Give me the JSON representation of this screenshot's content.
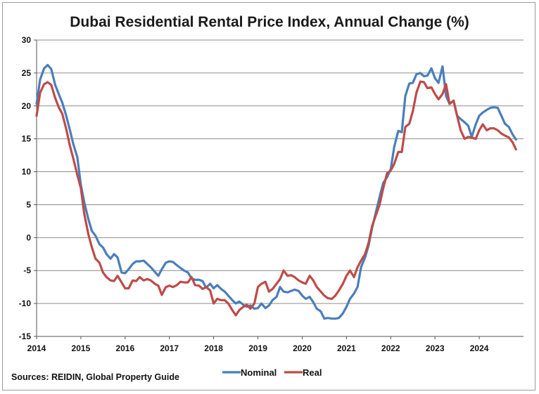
{
  "chart_data": {
    "type": "line",
    "title": "Dubai Residential Rental Price Index, Annual Change (%)",
    "xlabel": "",
    "ylabel": "",
    "x_ticks": [
      "2014",
      "2015",
      "2016",
      "2017",
      "2018",
      "2019",
      "2020",
      "2021",
      "2022",
      "2023",
      "2024"
    ],
    "xlim": [
      2014.0,
      2025.0
    ],
    "ylim": [
      -15,
      30
    ],
    "y_ticks": [
      -15,
      -10,
      -5,
      0,
      5,
      10,
      15,
      20,
      25,
      30
    ],
    "grid": "horizontal",
    "legend": "bottom-center",
    "series": [
      {
        "name": "Nominal",
        "color": "#4a7ebb",
        "points": [
          [
            2014.0,
            20.3
          ],
          [
            2014.08,
            24.0
          ],
          [
            2014.17,
            25.7
          ],
          [
            2014.25,
            26.2
          ],
          [
            2014.33,
            25.6
          ],
          [
            2014.42,
            23.2
          ],
          [
            2014.5,
            21.8
          ],
          [
            2014.58,
            20.5
          ],
          [
            2014.67,
            18.5
          ],
          [
            2014.75,
            16.4
          ],
          [
            2014.83,
            14.2
          ],
          [
            2014.92,
            12.2
          ],
          [
            2015.0,
            8.0
          ],
          [
            2015.08,
            5.3
          ],
          [
            2015.17,
            2.8
          ],
          [
            2015.25,
            1.0
          ],
          [
            2015.33,
            0.3
          ],
          [
            2015.42,
            -1.0
          ],
          [
            2015.5,
            -1.5
          ],
          [
            2015.58,
            -2.5
          ],
          [
            2015.67,
            -3.2
          ],
          [
            2015.75,
            -2.5
          ],
          [
            2015.83,
            -3.0
          ],
          [
            2015.92,
            -5.3
          ],
          [
            2016.0,
            -5.4
          ],
          [
            2016.08,
            -4.8
          ],
          [
            2016.17,
            -4.0
          ],
          [
            2016.25,
            -3.6
          ],
          [
            2016.33,
            -3.6
          ],
          [
            2016.42,
            -3.5
          ],
          [
            2016.5,
            -4.0
          ],
          [
            2016.58,
            -4.5
          ],
          [
            2016.67,
            -5.2
          ],
          [
            2016.75,
            -5.8
          ],
          [
            2016.83,
            -4.8
          ],
          [
            2016.92,
            -3.8
          ],
          [
            2017.0,
            -3.6
          ],
          [
            2017.08,
            -3.7
          ],
          [
            2017.17,
            -4.2
          ],
          [
            2017.25,
            -4.6
          ],
          [
            2017.33,
            -5.0
          ],
          [
            2017.42,
            -5.3
          ],
          [
            2017.5,
            -6.2
          ],
          [
            2017.58,
            -6.4
          ],
          [
            2017.67,
            -6.4
          ],
          [
            2017.75,
            -6.6
          ],
          [
            2017.83,
            -7.6
          ],
          [
            2017.92,
            -7.0
          ],
          [
            2018.0,
            -7.7
          ],
          [
            2018.08,
            -7.2
          ],
          [
            2018.17,
            -7.8
          ],
          [
            2018.25,
            -8.2
          ],
          [
            2018.33,
            -8.8
          ],
          [
            2018.42,
            -9.5
          ],
          [
            2018.5,
            -10.0
          ],
          [
            2018.58,
            -9.7
          ],
          [
            2018.67,
            -10.2
          ],
          [
            2018.75,
            -10.5
          ],
          [
            2018.83,
            -10.3
          ],
          [
            2018.92,
            -10.8
          ],
          [
            2019.0,
            -10.7
          ],
          [
            2019.08,
            -10.0
          ],
          [
            2019.17,
            -10.7
          ],
          [
            2019.25,
            -10.3
          ],
          [
            2019.33,
            -9.5
          ],
          [
            2019.42,
            -9.0
          ],
          [
            2019.5,
            -7.5
          ],
          [
            2019.58,
            -8.2
          ],
          [
            2019.67,
            -8.3
          ],
          [
            2019.75,
            -8.1
          ],
          [
            2019.83,
            -7.9
          ],
          [
            2019.92,
            -8.1
          ],
          [
            2020.0,
            -8.8
          ],
          [
            2020.08,
            -9.3
          ],
          [
            2020.17,
            -9.0
          ],
          [
            2020.25,
            -9.8
          ],
          [
            2020.33,
            -10.8
          ],
          [
            2020.42,
            -11.2
          ],
          [
            2020.5,
            -12.3
          ],
          [
            2020.58,
            -12.2
          ],
          [
            2020.67,
            -12.3
          ],
          [
            2020.75,
            -12.3
          ],
          [
            2020.83,
            -12.2
          ],
          [
            2020.92,
            -11.5
          ],
          [
            2021.0,
            -10.5
          ],
          [
            2021.08,
            -9.3
          ],
          [
            2021.17,
            -8.5
          ],
          [
            2021.25,
            -7.5
          ],
          [
            2021.33,
            -4.5
          ],
          [
            2021.42,
            -3.0
          ],
          [
            2021.5,
            -1.2
          ],
          [
            2021.58,
            1.5
          ],
          [
            2021.67,
            4.0
          ],
          [
            2021.75,
            6.2
          ],
          [
            2021.83,
            8.3
          ],
          [
            2021.92,
            9.2
          ],
          [
            2022.0,
            10.4
          ],
          [
            2022.08,
            13.8
          ],
          [
            2022.17,
            16.2
          ],
          [
            2022.25,
            16.0
          ],
          [
            2022.33,
            21.5
          ],
          [
            2022.42,
            23.4
          ],
          [
            2022.5,
            23.5
          ],
          [
            2022.58,
            24.8
          ],
          [
            2022.67,
            25.0
          ],
          [
            2022.75,
            24.5
          ],
          [
            2022.83,
            24.6
          ],
          [
            2022.92,
            25.7
          ],
          [
            2023.0,
            24.2
          ],
          [
            2023.08,
            23.5
          ],
          [
            2023.17,
            26.0
          ],
          [
            2023.25,
            21.5
          ],
          [
            2023.33,
            20.3
          ],
          [
            2023.42,
            20.8
          ],
          [
            2023.5,
            18.5
          ],
          [
            2023.58,
            18.0
          ],
          [
            2023.67,
            17.5
          ],
          [
            2023.75,
            17.0
          ],
          [
            2023.83,
            15.3
          ],
          [
            2023.92,
            17.2
          ],
          [
            2024.0,
            18.5
          ],
          [
            2024.08,
            19.0
          ],
          [
            2024.17,
            19.4
          ],
          [
            2024.25,
            19.7
          ],
          [
            2024.33,
            19.8
          ],
          [
            2024.42,
            19.7
          ],
          [
            2024.5,
            18.5
          ],
          [
            2024.58,
            17.3
          ],
          [
            2024.67,
            16.8
          ],
          [
            2024.75,
            15.7
          ],
          [
            2024.83,
            14.9
          ]
        ]
      },
      {
        "name": "Real",
        "color": "#be4b48",
        "points": [
          [
            2014.0,
            18.5
          ],
          [
            2014.08,
            22.0
          ],
          [
            2014.17,
            23.3
          ],
          [
            2014.25,
            23.6
          ],
          [
            2014.33,
            23.2
          ],
          [
            2014.42,
            21.2
          ],
          [
            2014.5,
            19.8
          ],
          [
            2014.58,
            18.8
          ],
          [
            2014.67,
            16.5
          ],
          [
            2014.75,
            14.0
          ],
          [
            2014.83,
            12.0
          ],
          [
            2014.92,
            9.5
          ],
          [
            2015.0,
            7.5
          ],
          [
            2015.08,
            3.5
          ],
          [
            2015.17,
            0.5
          ],
          [
            2015.25,
            -1.5
          ],
          [
            2015.33,
            -3.2
          ],
          [
            2015.42,
            -3.8
          ],
          [
            2015.5,
            -5.3
          ],
          [
            2015.58,
            -6.0
          ],
          [
            2015.67,
            -6.5
          ],
          [
            2015.75,
            -6.6
          ],
          [
            2015.83,
            -5.8
          ],
          [
            2015.92,
            -6.8
          ],
          [
            2016.0,
            -7.7
          ],
          [
            2016.08,
            -7.7
          ],
          [
            2016.17,
            -6.5
          ],
          [
            2016.25,
            -6.6
          ],
          [
            2016.33,
            -6.0
          ],
          [
            2016.42,
            -6.5
          ],
          [
            2016.5,
            -6.3
          ],
          [
            2016.58,
            -6.5
          ],
          [
            2016.67,
            -7.0
          ],
          [
            2016.75,
            -7.3
          ],
          [
            2016.83,
            -8.7
          ],
          [
            2016.92,
            -7.5
          ],
          [
            2017.0,
            -7.3
          ],
          [
            2017.08,
            -7.5
          ],
          [
            2017.17,
            -7.2
          ],
          [
            2017.25,
            -6.7
          ],
          [
            2017.33,
            -6.8
          ],
          [
            2017.42,
            -6.8
          ],
          [
            2017.5,
            -6.0
          ],
          [
            2017.58,
            -7.2
          ],
          [
            2017.67,
            -7.3
          ],
          [
            2017.75,
            -7.8
          ],
          [
            2017.83,
            -7.5
          ],
          [
            2017.92,
            -8.0
          ],
          [
            2018.0,
            -10.0
          ],
          [
            2018.08,
            -9.3
          ],
          [
            2018.17,
            -9.5
          ],
          [
            2018.25,
            -9.5
          ],
          [
            2018.33,
            -10.0
          ],
          [
            2018.42,
            -11.0
          ],
          [
            2018.5,
            -11.8
          ],
          [
            2018.58,
            -11.0
          ],
          [
            2018.67,
            -10.5
          ],
          [
            2018.75,
            -10.2
          ],
          [
            2018.83,
            -10.8
          ],
          [
            2018.92,
            -10.0
          ],
          [
            2019.0,
            -7.5
          ],
          [
            2019.08,
            -7.0
          ],
          [
            2019.17,
            -6.7
          ],
          [
            2019.25,
            -8.2
          ],
          [
            2019.33,
            -7.8
          ],
          [
            2019.42,
            -7.0
          ],
          [
            2019.5,
            -6.3
          ],
          [
            2019.58,
            -5.0
          ],
          [
            2019.67,
            -5.8
          ],
          [
            2019.75,
            -5.7
          ],
          [
            2019.83,
            -6.0
          ],
          [
            2019.92,
            -6.5
          ],
          [
            2020.0,
            -6.8
          ],
          [
            2020.08,
            -7.0
          ],
          [
            2020.17,
            -5.8
          ],
          [
            2020.25,
            -6.5
          ],
          [
            2020.33,
            -7.5
          ],
          [
            2020.42,
            -8.2
          ],
          [
            2020.5,
            -8.8
          ],
          [
            2020.58,
            -9.2
          ],
          [
            2020.67,
            -9.3
          ],
          [
            2020.75,
            -8.8
          ],
          [
            2020.83,
            -8.0
          ],
          [
            2020.92,
            -7.0
          ],
          [
            2021.0,
            -5.8
          ],
          [
            2021.08,
            -5.0
          ],
          [
            2021.17,
            -6.0
          ],
          [
            2021.25,
            -4.5
          ],
          [
            2021.33,
            -3.5
          ],
          [
            2021.42,
            -2.5
          ],
          [
            2021.5,
            -0.8
          ],
          [
            2021.58,
            1.8
          ],
          [
            2021.67,
            3.5
          ],
          [
            2021.75,
            5.0
          ],
          [
            2021.83,
            7.5
          ],
          [
            2021.92,
            9.8
          ],
          [
            2022.0,
            10.2
          ],
          [
            2022.08,
            11.2
          ],
          [
            2022.17,
            13.0
          ],
          [
            2022.25,
            13.0
          ],
          [
            2022.33,
            16.8
          ],
          [
            2022.42,
            17.3
          ],
          [
            2022.5,
            19.2
          ],
          [
            2022.58,
            22.0
          ],
          [
            2022.67,
            23.7
          ],
          [
            2022.75,
            23.6
          ],
          [
            2022.83,
            22.7
          ],
          [
            2022.92,
            22.8
          ],
          [
            2023.0,
            21.8
          ],
          [
            2023.08,
            21.0
          ],
          [
            2023.17,
            21.8
          ],
          [
            2023.25,
            23.3
          ],
          [
            2023.33,
            20.3
          ],
          [
            2023.42,
            20.8
          ],
          [
            2023.5,
            18.5
          ],
          [
            2023.58,
            16.3
          ],
          [
            2023.67,
            15.0
          ],
          [
            2023.75,
            15.3
          ],
          [
            2023.83,
            15.2
          ],
          [
            2023.92,
            15.0
          ],
          [
            2024.0,
            16.3
          ],
          [
            2024.08,
            17.2
          ],
          [
            2024.17,
            16.3
          ],
          [
            2024.25,
            16.6
          ],
          [
            2024.33,
            16.6
          ],
          [
            2024.42,
            16.3
          ],
          [
            2024.5,
            15.8
          ],
          [
            2024.58,
            15.5
          ],
          [
            2024.67,
            15.2
          ],
          [
            2024.75,
            14.5
          ],
          [
            2024.83,
            13.4
          ]
        ]
      }
    ],
    "source_note": "Sources: REIDIN, Global Property Guide"
  }
}
